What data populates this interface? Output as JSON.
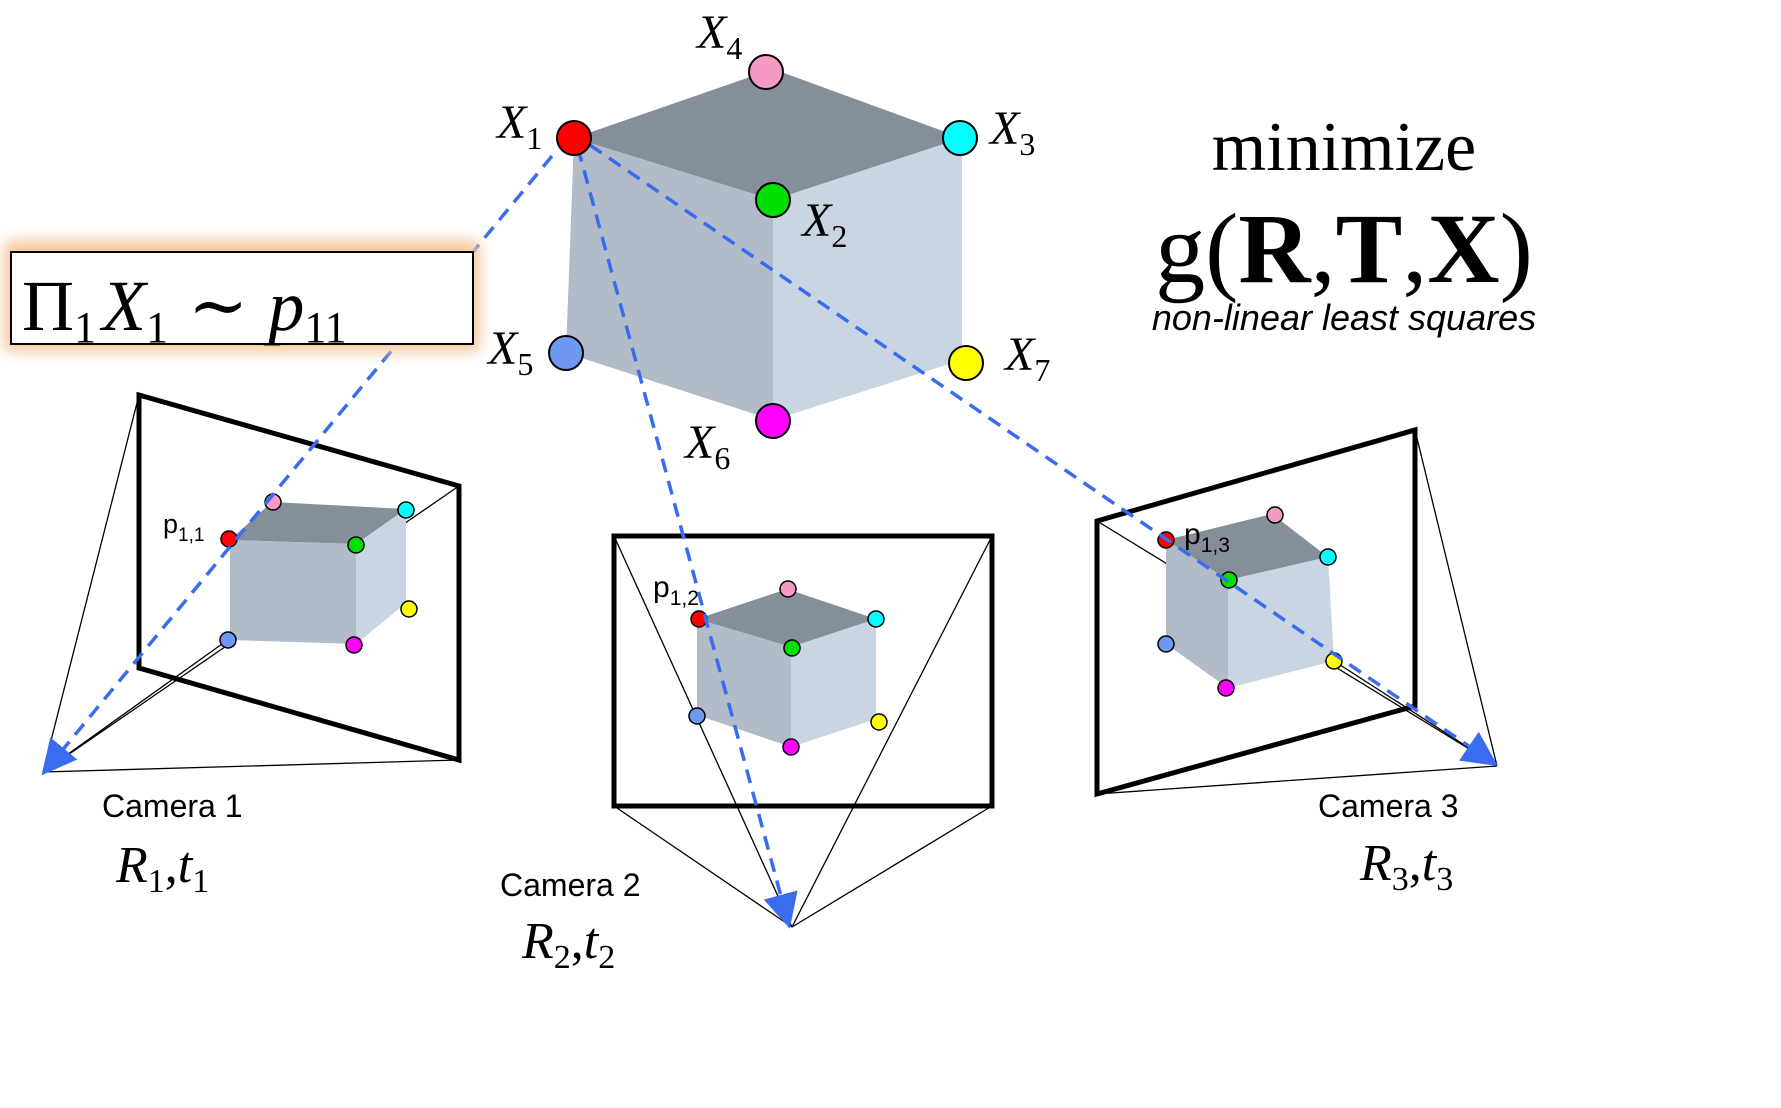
{
  "colors": {
    "cube_top": "#858f99",
    "cube_left": "#b2bcc8",
    "cube_right": "#c9d5e2",
    "ray_blue": "#3a6cf0",
    "equation_glow": "#f7c79c",
    "red": "#ff0000",
    "green": "#00e000",
    "cyan": "#00ffff",
    "pink": "#f59ac4",
    "blue": "#6f99f0",
    "magenta": "#ff00ff",
    "yellow": "#ffff00"
  },
  "points": {
    "x1": {
      "base": "X",
      "sub": "1"
    },
    "x2": {
      "base": "X",
      "sub": "2"
    },
    "x3": {
      "base": "X",
      "sub": "3"
    },
    "x4": {
      "base": "X",
      "sub": "4"
    },
    "x5": {
      "base": "X",
      "sub": "5"
    },
    "x6": {
      "base": "X",
      "sub": "6"
    },
    "x7": {
      "base": "X",
      "sub": "7"
    }
  },
  "projection_equation": {
    "pi": "Π",
    "pi_sub": "1",
    "x": "X",
    "x_sub": "1",
    "sim": "∼",
    "p": "p",
    "p_sub": "11"
  },
  "objective": {
    "title": "minimize",
    "function": "g(",
    "r": "R",
    "sep1": ",",
    "t": "T",
    "sep2": ",",
    "x": "X",
    "close": ")",
    "subtitle": "non-linear least squares"
  },
  "cameras": [
    {
      "label": "Camera 1",
      "r": "R",
      "r_sub": "1",
      "comma": ",",
      "t": "t",
      "t_sub": "1",
      "proj": "p",
      "proj_sub": "1,1"
    },
    {
      "label": "Camera 2",
      "r": "R",
      "r_sub": "2",
      "comma": ",",
      "t": "t",
      "t_sub": "2",
      "proj": "p",
      "proj_sub": "1,2"
    },
    {
      "label": "Camera 3",
      "r": "R",
      "r_sub": "3",
      "comma": ",",
      "t": "t",
      "t_sub": "3",
      "proj": "p",
      "proj_sub": "1,3"
    }
  ]
}
